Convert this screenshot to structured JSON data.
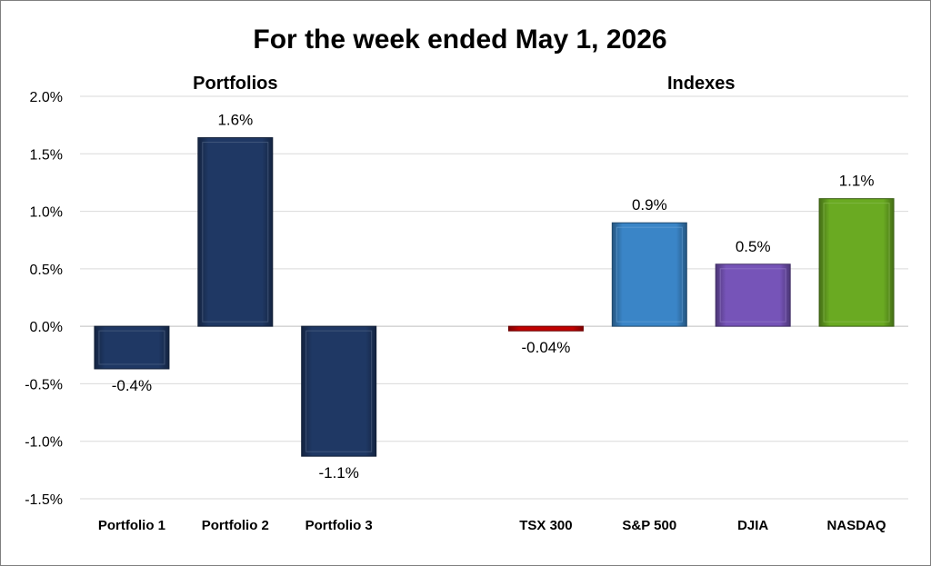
{
  "chart_data": {
    "type": "bar",
    "title": "For the week ended May 1, 2026",
    "groups": [
      {
        "label": "Portfolios",
        "categories": [
          "Portfolio 1",
          "Portfolio 2",
          "Portfolio 3"
        ]
      },
      {
        "label": "Indexes",
        "categories": [
          "TSX 300",
          "S&P 500",
          "DJIA",
          "NASDAQ"
        ]
      }
    ],
    "categories": [
      "Portfolio 1",
      "Portfolio 2",
      "Portfolio 3",
      "",
      "TSX 300",
      "S&P 500",
      "DJIA",
      "NASDAQ"
    ],
    "values": [
      -0.37,
      1.64,
      -1.13,
      null,
      -0.04,
      0.9,
      0.54,
      1.11
    ],
    "data_labels": [
      "-0.4%",
      "1.6%",
      "-1.1%",
      "",
      "-0.04%",
      "0.9%",
      "0.5%",
      "1.1%"
    ],
    "colors": [
      "#1f3864",
      "#1f3864",
      "#1f3864",
      "",
      "#c00000",
      "#3a85c7",
      "#7654b8",
      "#6aaa22"
    ],
    "ylim": [
      -1.5,
      2.0
    ],
    "yticks": [
      2.0,
      1.5,
      1.0,
      0.5,
      0.0,
      -0.5,
      -1.0,
      -1.5
    ],
    "ytick_labels": [
      "2.0%",
      "1.5%",
      "1.0%",
      "0.5%",
      "0.0%",
      "-0.5%",
      "-1.0%",
      "-1.5%"
    ],
    "grid": true,
    "xlabel": "",
    "ylabel": ""
  }
}
